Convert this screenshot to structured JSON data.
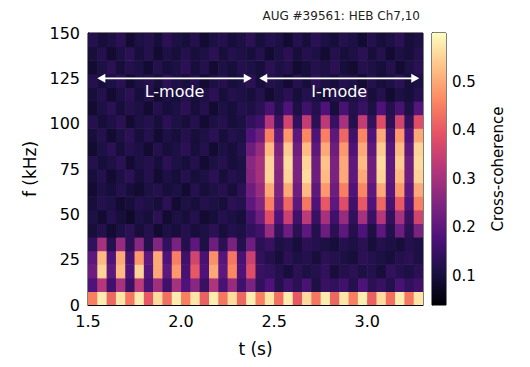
{
  "chart_data": {
    "type": "heatmap",
    "title": "AUG #39561: HEB Ch7,10",
    "x_label": "t (s)",
    "y_label": "f (kHz)",
    "x": [
      1.525,
      1.575,
      1.625,
      1.675,
      1.725,
      1.775,
      1.825,
      1.875,
      1.925,
      1.975,
      2.025,
      2.075,
      2.125,
      2.175,
      2.225,
      2.275,
      2.325,
      2.375,
      2.425,
      2.475,
      2.525,
      2.575,
      2.625,
      2.675,
      2.725,
      2.775,
      2.825,
      2.875,
      2.925,
      2.975,
      3.025,
      3.075,
      3.125,
      3.175,
      3.225,
      3.275
    ],
    "y": [
      3.75,
      11.25,
      18.75,
      26.25,
      33.75,
      41.25,
      48.75,
      56.25,
      63.75,
      71.25,
      78.75,
      86.25,
      93.75,
      101.25,
      108.75,
      116.25,
      123.75,
      131.25,
      138.75,
      146.25
    ],
    "values": [
      [
        0.45,
        0.58,
        0.42,
        0.57,
        0.44,
        0.58,
        0.4,
        0.56,
        0.43,
        0.58,
        0.45,
        0.57,
        0.41,
        0.58,
        0.44,
        0.56,
        0.42,
        0.58,
        0.45,
        0.57,
        0.43,
        0.58,
        0.4,
        0.56,
        0.44,
        0.58,
        0.42,
        0.57,
        0.45,
        0.58,
        0.41,
        0.56,
        0.43,
        0.58,
        0.44,
        0.57
      ],
      [
        0.18,
        0.32,
        0.16,
        0.3,
        0.15,
        0.33,
        0.17,
        0.29,
        0.16,
        0.3,
        0.18,
        0.26,
        0.15,
        0.31,
        0.17,
        0.28,
        0.16,
        0.24,
        0.14,
        0.18,
        0.12,
        0.16,
        0.13,
        0.17,
        0.11,
        0.15,
        0.14,
        0.16,
        0.12,
        0.18,
        0.13,
        0.15,
        0.12,
        0.17,
        0.14,
        0.16
      ],
      [
        0.22,
        0.55,
        0.2,
        0.52,
        0.18,
        0.55,
        0.19,
        0.5,
        0.2,
        0.48,
        0.17,
        0.4,
        0.18,
        0.5,
        0.2,
        0.46,
        0.18,
        0.38,
        0.15,
        0.14,
        0.12,
        0.1,
        0.13,
        0.11,
        0.12,
        0.14,
        0.1,
        0.12,
        0.13,
        0.11,
        0.12,
        0.1,
        0.14,
        0.12,
        0.11,
        0.13
      ],
      [
        0.2,
        0.52,
        0.18,
        0.5,
        0.17,
        0.48,
        0.2,
        0.5,
        0.18,
        0.45,
        0.16,
        0.36,
        0.17,
        0.47,
        0.19,
        0.44,
        0.17,
        0.35,
        0.14,
        0.12,
        0.1,
        0.13,
        0.11,
        0.12,
        0.1,
        0.13,
        0.12,
        0.11,
        0.1,
        0.13,
        0.12,
        0.11,
        0.1,
        0.12,
        0.13,
        0.11
      ],
      [
        0.14,
        0.3,
        0.12,
        0.28,
        0.13,
        0.26,
        0.12,
        0.25,
        0.14,
        0.24,
        0.12,
        0.2,
        0.11,
        0.22,
        0.13,
        0.24,
        0.12,
        0.22,
        0.13,
        0.15,
        0.11,
        0.12,
        0.1,
        0.13,
        0.12,
        0.11,
        0.1,
        0.12,
        0.11,
        0.13,
        0.1,
        0.12,
        0.11,
        0.1,
        0.12,
        0.11
      ],
      [
        0.1,
        0.12,
        0.09,
        0.11,
        0.13,
        0.1,
        0.12,
        0.09,
        0.11,
        0.1,
        0.12,
        0.1,
        0.11,
        0.13,
        0.1,
        0.12,
        0.11,
        0.14,
        0.16,
        0.28,
        0.14,
        0.22,
        0.13,
        0.2,
        0.12,
        0.22,
        0.13,
        0.2,
        0.12,
        0.18,
        0.11,
        0.2,
        0.12,
        0.22,
        0.13,
        0.24
      ],
      [
        0.11,
        0.09,
        0.12,
        0.1,
        0.08,
        0.11,
        0.1,
        0.13,
        0.09,
        0.11,
        0.1,
        0.12,
        0.09,
        0.1,
        0.12,
        0.11,
        0.1,
        0.16,
        0.22,
        0.38,
        0.18,
        0.35,
        0.16,
        0.33,
        0.15,
        0.3,
        0.16,
        0.28,
        0.14,
        0.3,
        0.15,
        0.32,
        0.14,
        0.3,
        0.15,
        0.36
      ],
      [
        0.1,
        0.12,
        0.11,
        0.09,
        0.1,
        0.12,
        0.11,
        0.1,
        0.13,
        0.09,
        0.11,
        0.1,
        0.12,
        0.11,
        0.1,
        0.13,
        0.12,
        0.2,
        0.25,
        0.45,
        0.22,
        0.42,
        0.2,
        0.44,
        0.18,
        0.4,
        0.2,
        0.38,
        0.16,
        0.4,
        0.18,
        0.42,
        0.17,
        0.4,
        0.18,
        0.45
      ],
      [
        0.09,
        0.11,
        0.1,
        0.12,
        0.1,
        0.09,
        0.11,
        0.12,
        0.1,
        0.11,
        0.09,
        0.12,
        0.1,
        0.11,
        0.12,
        0.1,
        0.13,
        0.22,
        0.28,
        0.5,
        0.24,
        0.5,
        0.22,
        0.52,
        0.2,
        0.48,
        0.22,
        0.45,
        0.18,
        0.46,
        0.2,
        0.5,
        0.19,
        0.48,
        0.2,
        0.5
      ],
      [
        0.1,
        0.12,
        0.09,
        0.11,
        0.13,
        0.1,
        0.12,
        0.09,
        0.11,
        0.1,
        0.12,
        0.1,
        0.11,
        0.13,
        0.1,
        0.12,
        0.11,
        0.25,
        0.3,
        0.55,
        0.25,
        0.55,
        0.24,
        0.56,
        0.22,
        0.52,
        0.24,
        0.5,
        0.2,
        0.5,
        0.22,
        0.55,
        0.2,
        0.52,
        0.22,
        0.55
      ],
      [
        0.12,
        0.1,
        0.11,
        0.13,
        0.09,
        0.11,
        0.12,
        0.1,
        0.13,
        0.11,
        0.1,
        0.12,
        0.09,
        0.11,
        0.12,
        0.1,
        0.11,
        0.26,
        0.3,
        0.55,
        0.26,
        0.56,
        0.24,
        0.55,
        0.22,
        0.53,
        0.24,
        0.5,
        0.2,
        0.52,
        0.22,
        0.56,
        0.2,
        0.54,
        0.22,
        0.56
      ],
      [
        0.09,
        0.11,
        0.13,
        0.1,
        0.12,
        0.11,
        0.09,
        0.12,
        0.1,
        0.11,
        0.13,
        0.1,
        0.12,
        0.09,
        0.11,
        0.1,
        0.12,
        0.22,
        0.28,
        0.52,
        0.24,
        0.54,
        0.22,
        0.52,
        0.2,
        0.5,
        0.22,
        0.48,
        0.18,
        0.5,
        0.2,
        0.54,
        0.19,
        0.52,
        0.2,
        0.55
      ],
      [
        0.1,
        0.12,
        0.09,
        0.11,
        0.13,
        0.1,
        0.12,
        0.09,
        0.11,
        0.1,
        0.12,
        0.1,
        0.11,
        0.13,
        0.1,
        0.12,
        0.11,
        0.18,
        0.22,
        0.45,
        0.2,
        0.48,
        0.2,
        0.46,
        0.18,
        0.45,
        0.2,
        0.42,
        0.16,
        0.46,
        0.18,
        0.5,
        0.17,
        0.48,
        0.18,
        0.5
      ],
      [
        0.12,
        0.1,
        0.11,
        0.13,
        0.09,
        0.11,
        0.12,
        0.1,
        0.13,
        0.11,
        0.1,
        0.12,
        0.09,
        0.11,
        0.12,
        0.1,
        0.11,
        0.14,
        0.16,
        0.32,
        0.15,
        0.36,
        0.14,
        0.34,
        0.13,
        0.33,
        0.15,
        0.3,
        0.12,
        0.34,
        0.14,
        0.38,
        0.13,
        0.36,
        0.14,
        0.38
      ],
      [
        0.09,
        0.11,
        0.13,
        0.1,
        0.12,
        0.11,
        0.09,
        0.12,
        0.1,
        0.11,
        0.13,
        0.1,
        0.12,
        0.09,
        0.11,
        0.1,
        0.12,
        0.11,
        0.13,
        0.17,
        0.12,
        0.18,
        0.11,
        0.16,
        0.12,
        0.18,
        0.1,
        0.17,
        0.12,
        0.15,
        0.11,
        0.18,
        0.12,
        0.17,
        0.11,
        0.19
      ],
      [
        0.1,
        0.12,
        0.09,
        0.11,
        0.13,
        0.1,
        0.12,
        0.09,
        0.11,
        0.1,
        0.12,
        0.1,
        0.11,
        0.13,
        0.1,
        0.12,
        0.11,
        0.1,
        0.12,
        0.09,
        0.11,
        0.13,
        0.1,
        0.12,
        0.11,
        0.09,
        0.12,
        0.1,
        0.11,
        0.13,
        0.1,
        0.12,
        0.09,
        0.11,
        0.1,
        0.12
      ],
      [
        0.12,
        0.1,
        0.11,
        0.13,
        0.09,
        0.11,
        0.12,
        0.1,
        0.13,
        0.11,
        0.1,
        0.12,
        0.09,
        0.11,
        0.12,
        0.1,
        0.11,
        0.13,
        0.1,
        0.12,
        0.11,
        0.09,
        0.12,
        0.1,
        0.13,
        0.11,
        0.1,
        0.12,
        0.11,
        0.09,
        0.12,
        0.1,
        0.11,
        0.13,
        0.1,
        0.11
      ],
      [
        0.09,
        0.11,
        0.13,
        0.1,
        0.12,
        0.11,
        0.09,
        0.12,
        0.1,
        0.11,
        0.13,
        0.1,
        0.12,
        0.09,
        0.11,
        0.1,
        0.12,
        0.11,
        0.1,
        0.13,
        0.11,
        0.12,
        0.09,
        0.1,
        0.12,
        0.11,
        0.13,
        0.1,
        0.09,
        0.12,
        0.11,
        0.1,
        0.12,
        0.09,
        0.11,
        0.13
      ],
      [
        0.1,
        0.12,
        0.09,
        0.11,
        0.13,
        0.1,
        0.12,
        0.09,
        0.11,
        0.1,
        0.12,
        0.1,
        0.11,
        0.13,
        0.1,
        0.12,
        0.11,
        0.1,
        0.12,
        0.09,
        0.11,
        0.13,
        0.1,
        0.12,
        0.11,
        0.09,
        0.12,
        0.1,
        0.11,
        0.13,
        0.1,
        0.12,
        0.09,
        0.11,
        0.1,
        0.12
      ],
      [
        0.12,
        0.1,
        0.11,
        0.13,
        0.09,
        0.11,
        0.12,
        0.1,
        0.13,
        0.11,
        0.1,
        0.12,
        0.09,
        0.11,
        0.12,
        0.1,
        0.11,
        0.13,
        0.1,
        0.12,
        0.11,
        0.09,
        0.12,
        0.1,
        0.13,
        0.11,
        0.1,
        0.12,
        0.11,
        0.09,
        0.12,
        0.1,
        0.11,
        0.13,
        0.1,
        0.11
      ]
    ],
    "xlim": [
      1.5,
      3.3
    ],
    "xticks": [
      1.5,
      {
        "value": 2,
        "label": "2.0"
      },
      2.5,
      {
        "value": 3,
        "label": "3.0"
      }
    ],
    "ylim": [
      0,
      150
    ],
    "yticks": [
      0,
      25,
      50,
      75,
      100,
      125,
      150
    ],
    "colorbar": {
      "label": "Cross-coherence",
      "lim": [
        0.04,
        0.6
      ],
      "ticks": [
        0.1,
        0.2,
        0.3,
        0.4,
        0.5
      ]
    },
    "annotations": [
      {
        "text": "L-mode",
        "x": [
          1.55,
          2.38
        ],
        "y": 125
      },
      {
        "text": "I-mode",
        "x": [
          2.42,
          3.28
        ],
        "y": 125
      }
    ],
    "shaded_band": [
      2.09,
      2.13
    ],
    "grid": false
  }
}
